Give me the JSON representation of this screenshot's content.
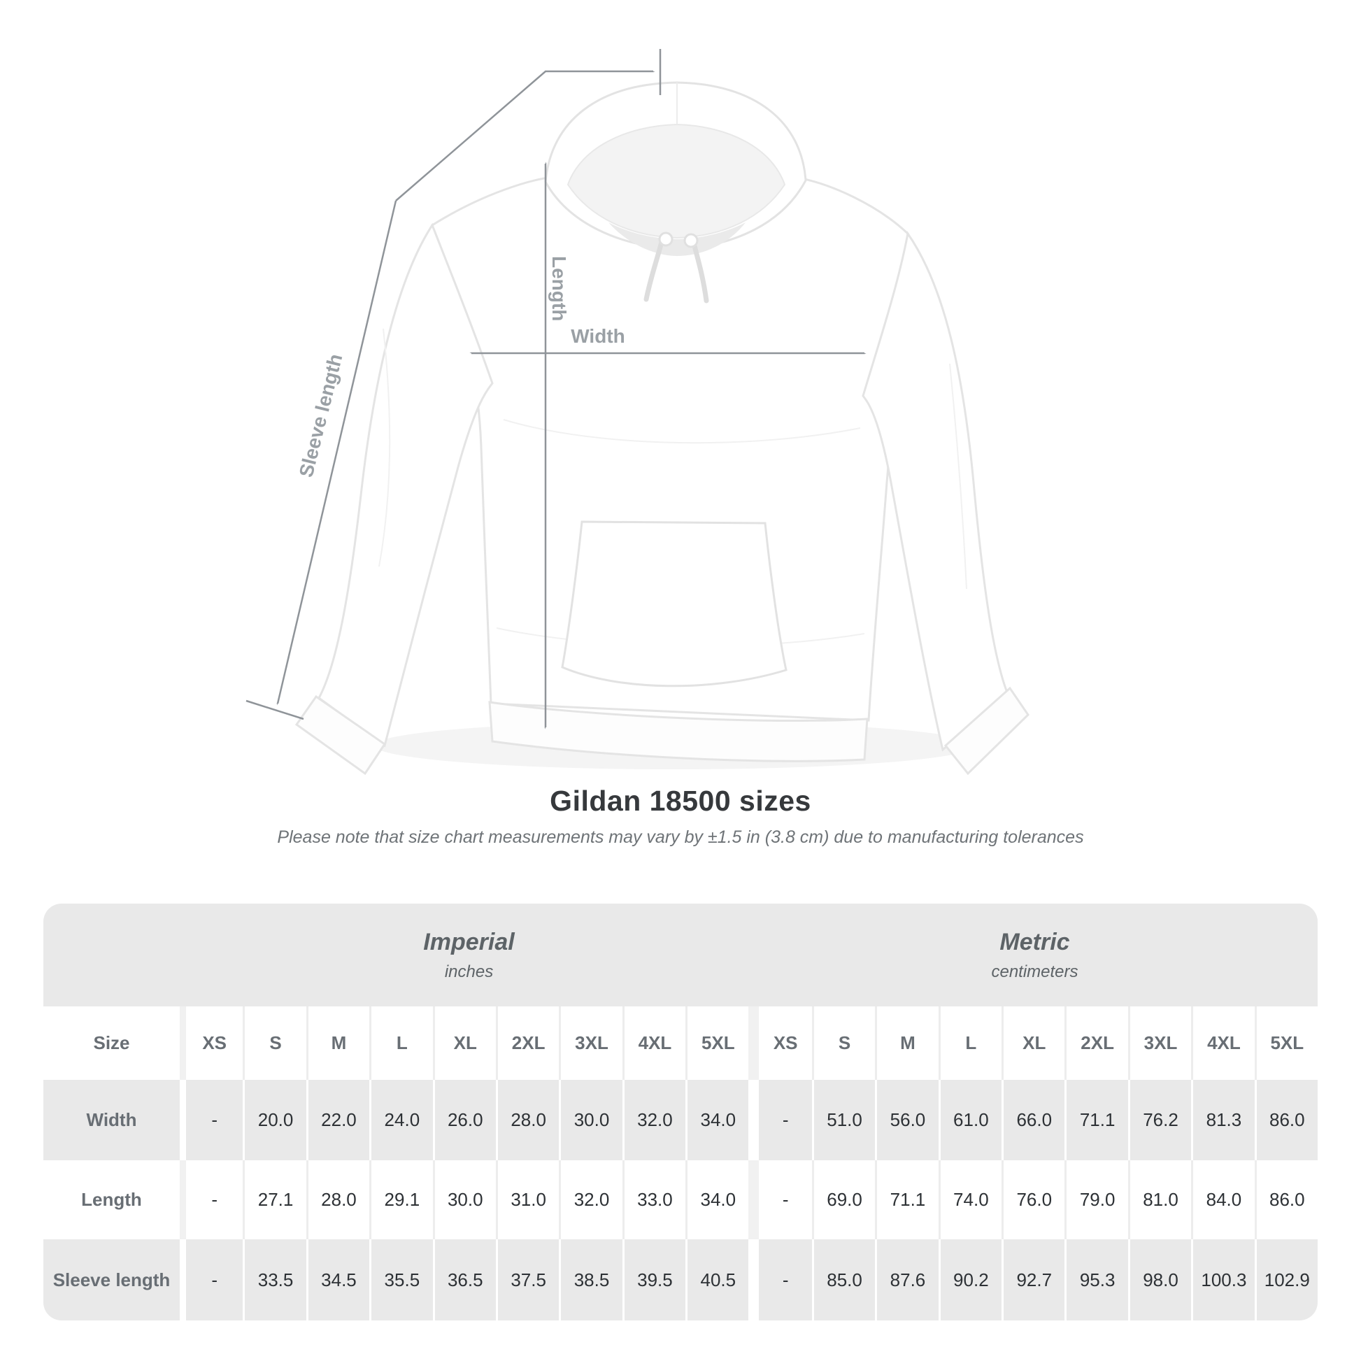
{
  "heading": {
    "title": "Gildan 18500 sizes",
    "note": "Please note that size chart measurements may vary by ±1.5 in (3.8 cm) due to manufacturing tolerances"
  },
  "diagram": {
    "labels": {
      "sleeve_length": "Sleeve length",
      "length": "Length",
      "width": "Width"
    },
    "line_color": "#8f9499",
    "label_color": "#9aa0a5"
  },
  "size_table": {
    "corner_label": "Size",
    "unit_groups": [
      {
        "name": "Imperial",
        "unit": "inches"
      },
      {
        "name": "Metric",
        "unit": "centimeters"
      }
    ],
    "sizes": [
      "XS",
      "S",
      "M",
      "L",
      "XL",
      "2XL",
      "3XL",
      "4XL",
      "5XL"
    ],
    "rows": [
      {
        "label": "Width",
        "imperial": [
          "-",
          "20.0",
          "22.0",
          "24.0",
          "26.0",
          "28.0",
          "30.0",
          "32.0",
          "34.0"
        ],
        "metric": [
          "-",
          "51.0",
          "56.0",
          "61.0",
          "66.0",
          "71.1",
          "76.2",
          "81.3",
          "86.0"
        ]
      },
      {
        "label": "Length",
        "imperial": [
          "-",
          "27.1",
          "28.0",
          "29.1",
          "30.0",
          "31.0",
          "32.0",
          "33.0",
          "34.0"
        ],
        "metric": [
          "-",
          "69.0",
          "71.1",
          "74.0",
          "76.0",
          "79.0",
          "81.0",
          "84.0",
          "86.0"
        ]
      },
      {
        "label": "Sleeve length",
        "imperial": [
          "-",
          "33.5",
          "34.5",
          "35.5",
          "36.5",
          "37.5",
          "38.5",
          "39.5",
          "40.5"
        ],
        "metric": [
          "-",
          "85.0",
          "87.6",
          "90.2",
          "92.7",
          "95.3",
          "98.0",
          "100.3",
          "102.9"
        ]
      }
    ],
    "colors": {
      "band": "#e9e9e9",
      "row_alt": "#e9e9e9",
      "row_base": "#ffffff",
      "label_text": "#686e74",
      "value_text": "#2d3135"
    }
  }
}
